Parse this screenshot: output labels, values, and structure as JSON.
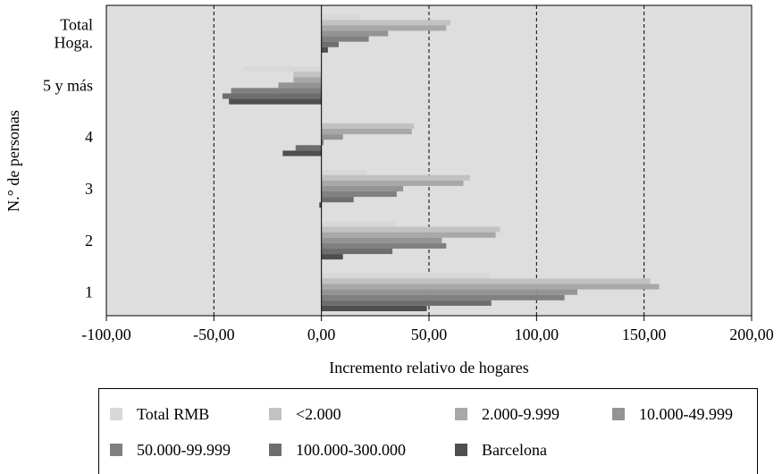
{
  "chart_data": {
    "type": "bar",
    "orientation": "horizontal",
    "categories": [
      "1",
      "2",
      "3",
      "4",
      "5 y más",
      "Total Hoga."
    ],
    "series": [
      {
        "name": "Total RMB",
        "color": "#d8d8d8",
        "values": [
          78,
          35,
          21,
          0,
          -36,
          18
        ]
      },
      {
        "name": "<2.000",
        "color": "#c2c2c2",
        "values": [
          153,
          83,
          69,
          43,
          -13,
          60
        ]
      },
      {
        "name": "2.000-9.999",
        "color": "#a8a8a8",
        "values": [
          157,
          81,
          66,
          42,
          -13,
          58
        ]
      },
      {
        "name": "10.000-49.999",
        "color": "#949494",
        "values": [
          119,
          56,
          38,
          10,
          -20,
          31
        ]
      },
      {
        "name": "50.000-99.999",
        "color": "#808080",
        "values": [
          113,
          58,
          35,
          1,
          -42,
          22
        ]
      },
      {
        "name": "100.000-300.000",
        "color": "#6e6e6e",
        "values": [
          79,
          33,
          15,
          -12,
          -46,
          8
        ]
      },
      {
        "name": "Barcelona",
        "color": "#4f4f4f",
        "values": [
          49,
          10,
          -1,
          -18,
          -43,
          3
        ]
      }
    ],
    "xlabel": "Incremento relativo de hogares",
    "ylabel": "N.° de personas",
    "xlim": [
      -100,
      200
    ],
    "xticks": [
      "-100,00",
      "-50,00",
      "0,00",
      "50,00",
      "100,00",
      "150,00",
      "200,00"
    ],
    "xtick_values": [
      -100,
      -50,
      0,
      50,
      100,
      150,
      200
    ],
    "gridlines": "dashed vertical",
    "legend_position": "bottom"
  }
}
